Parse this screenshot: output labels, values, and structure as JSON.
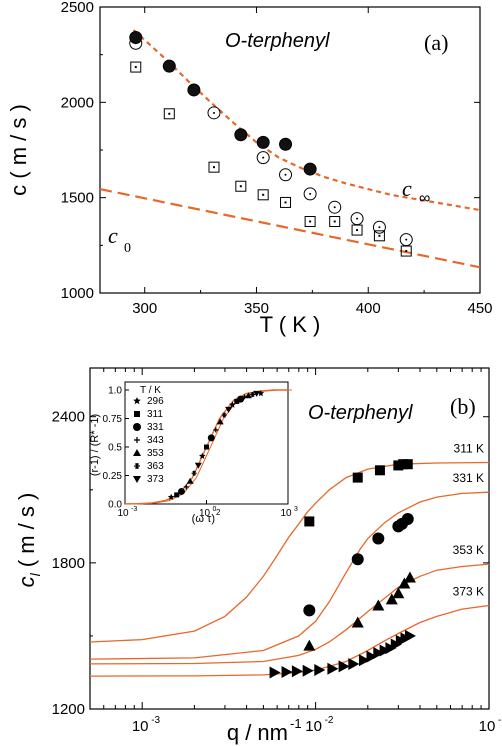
{
  "chart_data": [
    {
      "panel": "(a)",
      "type": "scatter",
      "material_label": "O-terphenyl",
      "xlabel": "T ( K )",
      "ylabel": "c ( m / s )",
      "xlim": [
        280,
        450
      ],
      "ylim": [
        1000,
        2500
      ],
      "xticks": [
        "300",
        "350",
        "400",
        "450"
      ],
      "yticks": [
        "1000",
        "1500",
        "2000",
        "2500"
      ],
      "curve_labels": {
        "c_inf": "c",
        "c_inf_sub": "∞",
        "c0": "c",
        "c0_sub": "0"
      },
      "series": [
        {
          "marker": "filled-circle",
          "x": [
            296,
            311,
            322,
            343,
            353,
            363,
            374
          ],
          "y": [
            2340,
            2190,
            2065,
            1830,
            1790,
            1780,
            1650
          ]
        },
        {
          "marker": "open-circle",
          "x": [
            296,
            331,
            353,
            363,
            374,
            385,
            395,
            405,
            417
          ],
          "y": [
            2310,
            1945,
            1710,
            1620,
            1520,
            1450,
            1390,
            1345,
            1280
          ]
        },
        {
          "marker": "open-square",
          "x": [
            296,
            311,
            331,
            343,
            353,
            363,
            374,
            385,
            395,
            405,
            417
          ],
          "y": [
            2185,
            1940,
            1660,
            1560,
            1515,
            1475,
            1375,
            1375,
            1330,
            1300,
            1220
          ]
        },
        {
          "curve": "c_inf",
          "style": "short-dash",
          "color": "#e8672a",
          "x": [
            295,
            310,
            320,
            330,
            340,
            350,
            360,
            370,
            380,
            390,
            400,
            410,
            420,
            430,
            440,
            450
          ],
          "y": [
            2380,
            2220,
            2105,
            1995,
            1890,
            1790,
            1710,
            1655,
            1610,
            1575,
            1545,
            1515,
            1495,
            1475,
            1455,
            1435
          ]
        },
        {
          "curve": "c0",
          "style": "long-dash",
          "color": "#e8672a",
          "x": [
            280,
            450
          ],
          "y": [
            1545,
            1135
          ]
        }
      ]
    },
    {
      "panel": "(b)",
      "type": "scatter",
      "material_label": "O-terphenyl",
      "xlabel": "q / nm",
      "xlabel_sup": "-1",
      "ylabel": "c",
      "ylabel_sub": "l",
      "ylabel_unit": "( m / s )",
      "xscale": "log",
      "xlim": [
        0.0005,
        0.1
      ],
      "ylim": [
        1200,
        2600
      ],
      "xticks": [
        {
          "base": "10",
          "exp": "-3"
        },
        {
          "base": "10",
          "exp": "-2"
        },
        {
          "base": "10",
          "exp": "-1"
        }
      ],
      "yticks": [
        "1200",
        "1800",
        "2400"
      ],
      "series": [
        {
          "name": "311 K",
          "marker": "square",
          "x": [
            0.0092,
            0.0175,
            0.0235,
            0.03,
            0.032,
            0.034
          ],
          "y": [
            1970,
            2150,
            2180,
            2200,
            2205,
            2205
          ]
        },
        {
          "name": "331 K",
          "marker": "circle",
          "x": [
            0.0092,
            0.0175,
            0.023,
            0.03,
            0.0315,
            0.034
          ],
          "y": [
            1605,
            1815,
            1900,
            1950,
            1960,
            1980
          ]
        },
        {
          "name": "353 K",
          "marker": "triangle-up",
          "x": [
            0.0092,
            0.0175,
            0.023,
            0.0275,
            0.03,
            0.0325,
            0.035
          ],
          "y": [
            1460,
            1555,
            1625,
            1650,
            1675,
            1715,
            1740
          ]
        },
        {
          "name": "373 K",
          "marker": "triangle-right",
          "x": [
            0.0058,
            0.0068,
            0.0078,
            0.009,
            0.0105,
            0.0125,
            0.0145,
            0.0165,
            0.019,
            0.021,
            0.023,
            0.025,
            0.027,
            0.029,
            0.031,
            0.033,
            0.035
          ],
          "y": [
            1350,
            1352,
            1355,
            1357,
            1360,
            1365,
            1375,
            1385,
            1400,
            1415,
            1430,
            1440,
            1450,
            1465,
            1480,
            1490,
            1500
          ]
        },
        {
          "curve": "311 K fit",
          "color": "#e8672a",
          "x": [
            0.0005,
            0.001,
            0.002,
            0.003,
            0.004,
            0.005,
            0.006,
            0.007,
            0.008,
            0.009,
            0.01,
            0.012,
            0.015,
            0.02,
            0.03,
            0.05,
            0.1
          ],
          "y": [
            1475,
            1485,
            1520,
            1580,
            1660,
            1745,
            1830,
            1905,
            1960,
            2010,
            2045,
            2100,
            2150,
            2185,
            2205,
            2210,
            2212
          ]
        },
        {
          "curve": "331 K fit",
          "color": "#e8672a",
          "x": [
            0.0005,
            0.002,
            0.005,
            0.008,
            0.01,
            0.012,
            0.015,
            0.018,
            0.02,
            0.025,
            0.03,
            0.04,
            0.05,
            0.07,
            0.1
          ],
          "y": [
            1405,
            1410,
            1440,
            1500,
            1560,
            1640,
            1760,
            1855,
            1900,
            1965,
            2005,
            2050,
            2070,
            2085,
            2090
          ]
        },
        {
          "curve": "353 K fit",
          "color": "#e8672a",
          "x": [
            0.0005,
            0.002,
            0.005,
            0.008,
            0.01,
            0.012,
            0.015,
            0.02,
            0.025,
            0.03,
            0.04,
            0.05,
            0.07,
            0.1
          ],
          "y": [
            1385,
            1387,
            1395,
            1420,
            1445,
            1475,
            1525,
            1600,
            1655,
            1700,
            1745,
            1770,
            1785,
            1795
          ]
        },
        {
          "curve": "373 K fit",
          "color": "#e8672a",
          "x": [
            0.0005,
            0.002,
            0.005,
            0.008,
            0.01,
            0.012,
            0.015,
            0.02,
            0.025,
            0.03,
            0.04,
            0.05,
            0.07,
            0.1
          ],
          "y": [
            1335,
            1336,
            1340,
            1350,
            1360,
            1375,
            1395,
            1440,
            1480,
            1510,
            1555,
            1580,
            1610,
            1625
          ]
        }
      ],
      "inset": {
        "type": "scatter",
        "xscale": "log",
        "xlim": [
          0.001,
          1000
        ],
        "ylim": [
          0,
          1.0
        ],
        "xlabel": "(ω τ)",
        "xlabel_sup": "2",
        "ylabel": "(r-1) / (R* -1)",
        "yticks": [
          "0.0",
          "0.25",
          "0.5",
          "0.75",
          "1.0"
        ],
        "xticks": [
          {
            "base": "10",
            "exp": "-3"
          },
          {
            "base": "10",
            "exp": "0"
          },
          {
            "base": "10",
            "exp": "3"
          }
        ],
        "legend_title": "T / K",
        "legend": [
          {
            "name": "296",
            "marker": "star"
          },
          {
            "name": "311",
            "marker": "square"
          },
          {
            "name": "331",
            "marker": "circle"
          },
          {
            "name": "343",
            "marker": "plus"
          },
          {
            "name": "353",
            "marker": "triangle-up"
          },
          {
            "name": "363",
            "marker": "asterisk"
          },
          {
            "name": "373",
            "marker": "triangle-down"
          }
        ],
        "points": {
          "x": [
            0.05,
            0.08,
            0.12,
            0.18,
            0.25,
            0.35,
            0.5,
            0.7,
            1.0,
            1.5,
            2.2,
            3.2,
            4.5,
            6.5,
            9,
            13,
            18,
            25,
            35,
            50,
            70,
            100
          ],
          "y": [
            0.06,
            0.08,
            0.11,
            0.15,
            0.2,
            0.27,
            0.34,
            0.42,
            0.5,
            0.58,
            0.65,
            0.72,
            0.78,
            0.83,
            0.87,
            0.9,
            0.92,
            0.94,
            0.95,
            0.96,
            0.97,
            0.97
          ]
        },
        "curve": {
          "color": "#e8672a",
          "x": [
            0.001,
            0.003,
            0.01,
            0.03,
            0.1,
            0.3,
            1,
            3,
            10,
            30,
            100,
            300,
            1000
          ],
          "y": [
            0.001,
            0.003,
            0.01,
            0.03,
            0.09,
            0.23,
            0.5,
            0.75,
            0.91,
            0.97,
            0.99,
            1.0,
            1.0
          ]
        }
      }
    }
  ]
}
